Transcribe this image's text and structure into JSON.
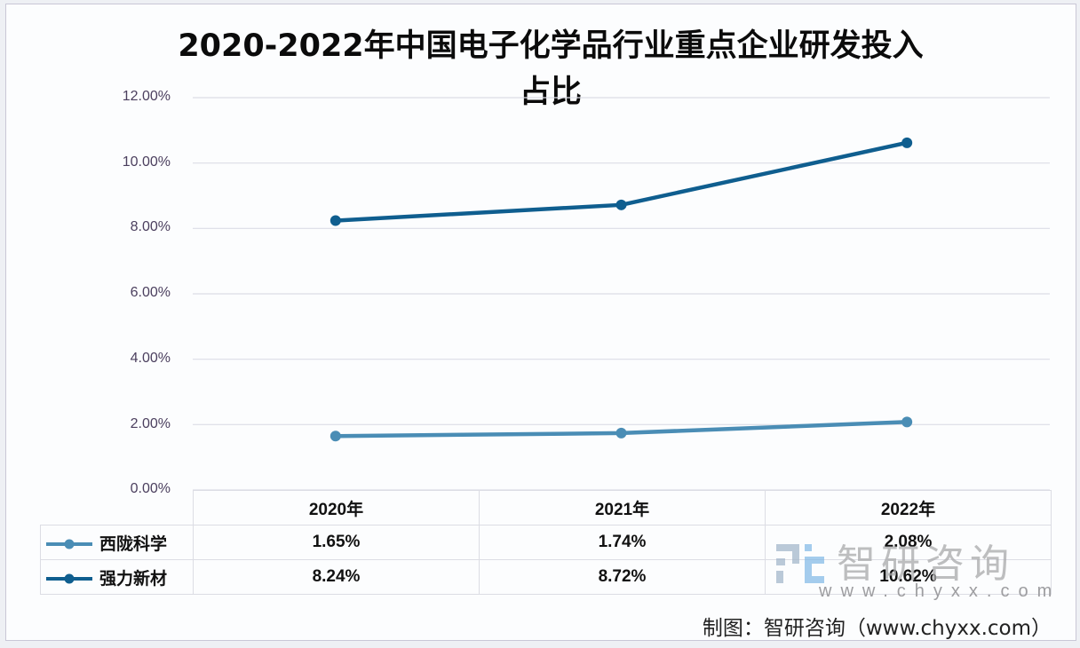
{
  "chart_data": {
    "type": "line",
    "title": "2020-2022年中国电子化学品行业重点企业研发投入占比",
    "title_line1": "2020-2022年中国电子化学品行业重点企业研发投入",
    "title_line2": "占比",
    "categories": [
      "2020年",
      "2021年",
      "2022年"
    ],
    "series": [
      {
        "name": "西陇科学",
        "values": [
          1.65,
          1.74,
          2.08
        ],
        "labels": [
          "1.65%",
          "1.74%",
          "2.08%"
        ],
        "color": "#4a8db5"
      },
      {
        "name": "强力新材",
        "values": [
          8.24,
          8.72,
          10.62
        ],
        "labels": [
          "8.24%",
          "8.72%",
          "10.62%"
        ],
        "color": "#0f5e8f"
      }
    ],
    "yticks": [
      "12.00%",
      "10.00%",
      "8.00%",
      "6.00%",
      "4.00%",
      "2.00%",
      "0.00%"
    ],
    "ylim": [
      0,
      12
    ],
    "xlabel": "",
    "ylabel": "",
    "grid": true,
    "legend_position": "data-table"
  },
  "watermark": {
    "brand": "智研咨询",
    "url": "www.chyxx.com"
  },
  "source": "制图：智研咨询（www.chyxx.com）"
}
